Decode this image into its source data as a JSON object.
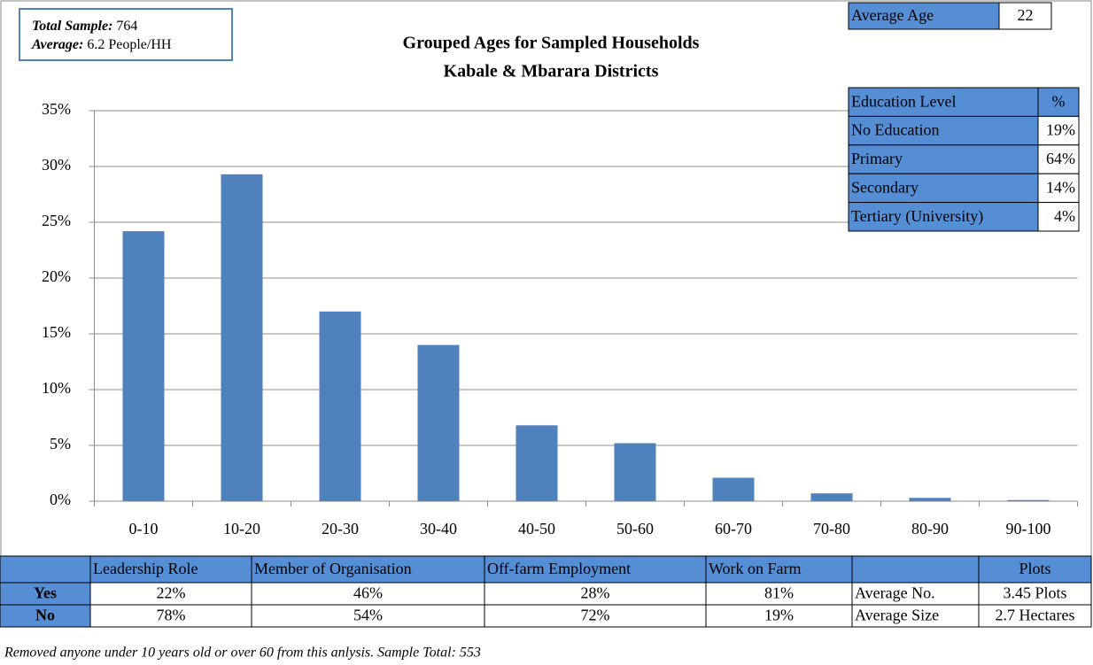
{
  "chart_data": {
    "type": "bar",
    "title": "Grouped Ages for Sampled Households",
    "subtitle": "Kabale & Mbarara Districts",
    "categories": [
      "0-10",
      "10-20",
      "20-30",
      "30-40",
      "40-50",
      "50-60",
      "60-70",
      "70-80",
      "80-90",
      "90-100"
    ],
    "values": [
      24.2,
      29.3,
      17,
      14,
      6.8,
      5.2,
      2.1,
      0.7,
      0.3,
      0.1
    ],
    "color": "#4f81bd",
    "ylim": [
      0,
      35
    ],
    "yticks": [
      {
        "value": 0,
        "label": "0%"
      },
      {
        "value": 5,
        "label": "5%"
      },
      {
        "value": 10,
        "label": "10%"
      },
      {
        "value": 15,
        "label": "15%"
      },
      {
        "value": 20,
        "label": "20%"
      },
      {
        "value": 25,
        "label": "25%"
      },
      {
        "value": 30,
        "label": "30%"
      },
      {
        "value": 35,
        "label": "35%"
      }
    ],
    "grid": true
  },
  "info_box": {
    "sample_label": "Total Sample:",
    "sample_value": "764",
    "average_label": "Average:",
    "average_value": "6.2 People/HH"
  },
  "average_age": {
    "label": "Average Age",
    "value": "22"
  },
  "education_table": {
    "headers": [
      "Education Level",
      "%"
    ],
    "rows": [
      [
        "No Education",
        "19%"
      ],
      [
        "Primary",
        "64%"
      ],
      [
        "Secondary",
        "14%"
      ],
      [
        "Tertiary (University)",
        "4%"
      ]
    ]
  },
  "bottom_table": {
    "headers": [
      "Leadership Role",
      "Member of Organisation",
      "Off-farm Employment",
      "Work on Farm"
    ],
    "rows": [
      {
        "label": "Yes",
        "cells": [
          "22%",
          "46%",
          "28%",
          "81%"
        ]
      },
      {
        "label": "No",
        "cells": [
          "78%",
          "54%",
          "72%",
          "19%"
        ]
      }
    ]
  },
  "plots_table": {
    "header": "Plots",
    "rows": [
      [
        "Average No.",
        "3.45 Plots"
      ],
      [
        "Average Size",
        "2.7 Hectares"
      ]
    ]
  },
  "footnote": "Removed anyone under 10 years old or over 60 from this anlysis. Sample Total: 553"
}
